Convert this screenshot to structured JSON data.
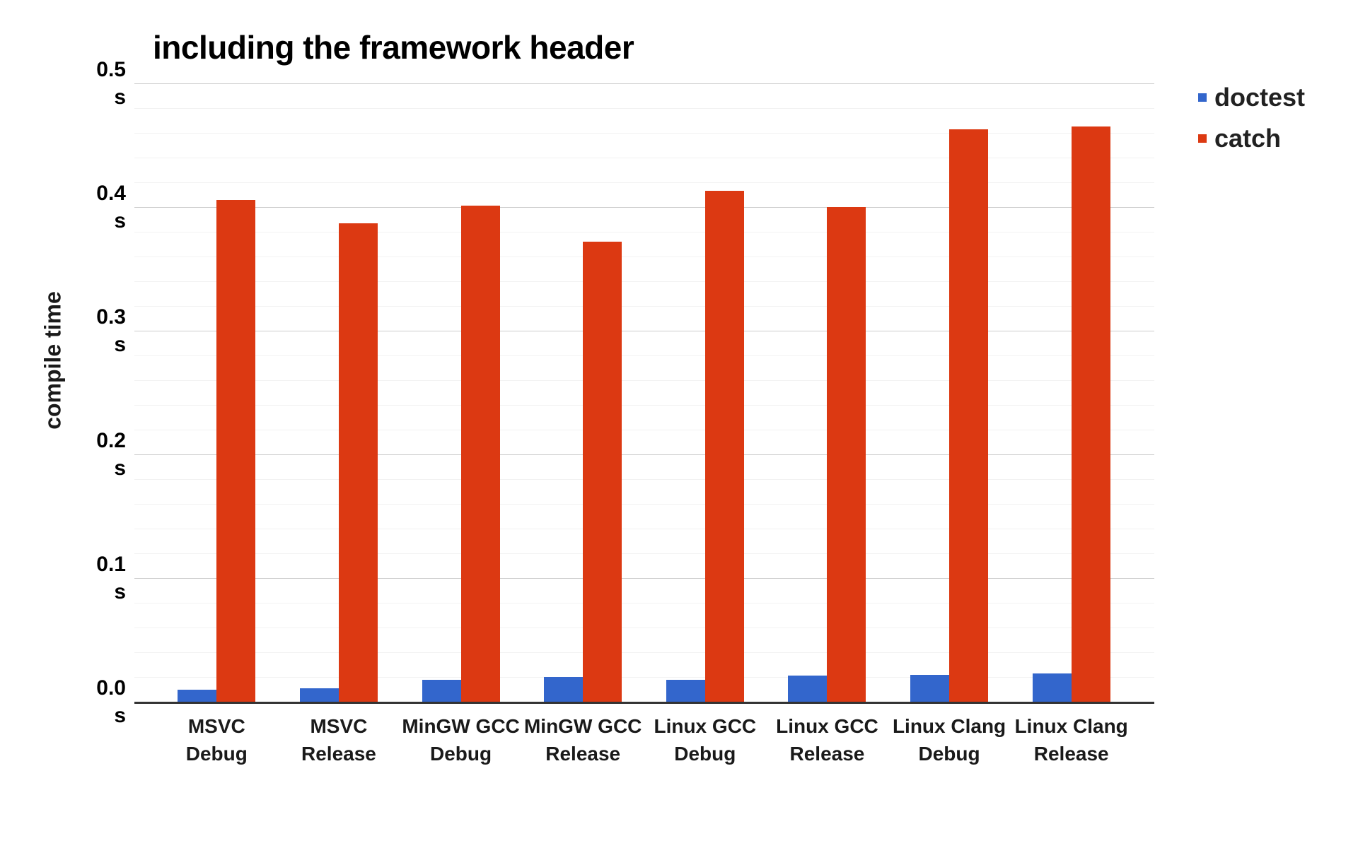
{
  "chart_data": {
    "type": "bar",
    "title": "including the framework header",
    "ylabel": "compile time",
    "xlabel": "",
    "unit": "s",
    "ylim": [
      0,
      0.5
    ],
    "y_major_step": 0.1,
    "y_minor_step": 0.02,
    "grid": true,
    "legend_position": "right",
    "yticks": [
      "0.5",
      "0.4",
      "0.3",
      "0.2",
      "0.1",
      "0.0"
    ],
    "categories": [
      "MSVC\nDebug",
      "MSVC\nRelease",
      "MinGW GCC\nDebug",
      "MinGW GCC\nRelease",
      "Linux GCC\nDebug",
      "Linux GCC\nRelease",
      "Linux Clang\nDebug",
      "Linux Clang\nRelease"
    ],
    "series": [
      {
        "name": "doctest",
        "color": "#3366CC",
        "values": [
          0.01,
          0.011,
          0.018,
          0.02,
          0.018,
          0.021,
          0.022,
          0.023
        ]
      },
      {
        "name": "catch",
        "color": "#DC3912",
        "values": [
          0.406,
          0.387,
          0.401,
          0.372,
          0.413,
          0.4,
          0.463,
          0.465
        ]
      }
    ]
  }
}
